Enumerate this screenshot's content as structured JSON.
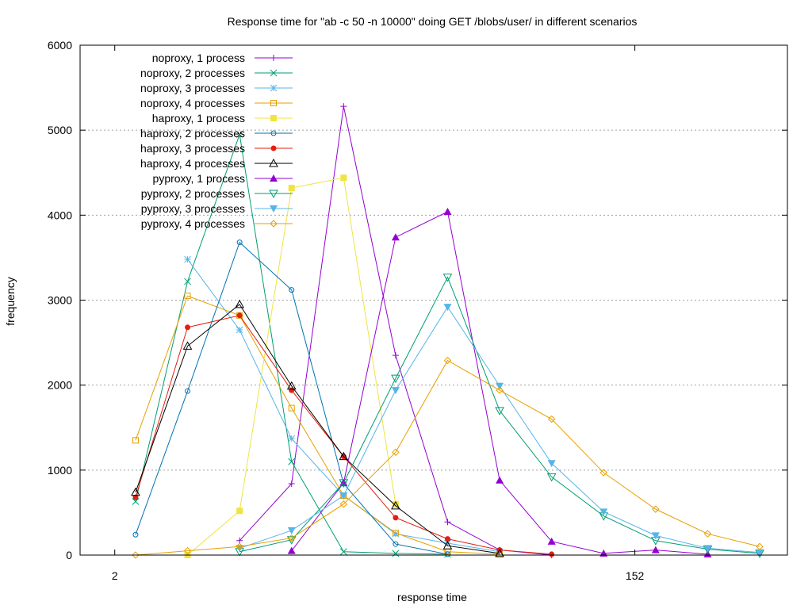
{
  "chart_data": {
    "type": "line",
    "title": "Response time for \"ab -c 50 -n 10000\" doing GET /blobs/user/ in different scenarios",
    "xlabel": "response time",
    "ylabel": "frequency",
    "xlim": [
      -8,
      196
    ],
    "ylim": [
      0,
      6000
    ],
    "x": [
      8,
      23,
      38,
      53,
      68,
      83,
      98,
      113,
      128,
      143,
      158,
      173,
      188
    ],
    "xticks": [
      2,
      152
    ],
    "yticks": [
      0,
      1000,
      2000,
      3000,
      4000,
      5000,
      6000
    ],
    "grid": "horizontal dotted",
    "legend_position": "top-left",
    "series": [
      {
        "name": "noproxy, 1 process",
        "color": "#9400d3",
        "marker": "plus",
        "values": [
          null,
          null,
          170,
          840,
          5280,
          2350,
          390,
          60,
          0,
          null,
          null,
          null,
          null
        ]
      },
      {
        "name": "noproxy, 2 processes",
        "color": "#009e73",
        "marker": "cross",
        "values": [
          630,
          3220,
          4950,
          1100,
          40,
          20,
          10,
          null,
          null,
          null,
          null,
          null,
          null
        ]
      },
      {
        "name": "noproxy, 3 processes",
        "color": "#56b4e9",
        "marker": "star",
        "values": [
          null,
          3480,
          2650,
          1370,
          700,
          250,
          140,
          40,
          null,
          null,
          null,
          null,
          null
        ]
      },
      {
        "name": "noproxy, 4 processes",
        "color": "#e69f00",
        "marker": "square-open",
        "values": [
          1350,
          3050,
          2820,
          1730,
          700,
          260,
          40,
          10,
          null,
          null,
          null,
          null,
          null
        ]
      },
      {
        "name": "haproxy, 1 process",
        "color": "#f0e442",
        "marker": "square-filled",
        "values": [
          null,
          0,
          520,
          4320,
          4440,
          600,
          null,
          null,
          null,
          null,
          null,
          null,
          null
        ]
      },
      {
        "name": "haproxy, 2 processes",
        "color": "#0072b2",
        "marker": "circle-open",
        "values": [
          240,
          1930,
          3680,
          3120,
          840,
          130,
          10,
          null,
          null,
          null,
          null,
          null,
          null
        ]
      },
      {
        "name": "haproxy, 3 processes",
        "color": "#e51e10",
        "marker": "circle-filled",
        "values": [
          680,
          2680,
          2820,
          1940,
          1160,
          440,
          190,
          60,
          10,
          null,
          null,
          null,
          null
        ]
      },
      {
        "name": "haproxy, 4 processes",
        "color": "#000000",
        "marker": "triangle-open",
        "values": [
          740,
          2460,
          2950,
          1990,
          1160,
          580,
          110,
          20,
          null,
          null,
          null,
          null,
          null
        ]
      },
      {
        "name": "pyproxy, 1 process",
        "color": "#9400d3",
        "marker": "triangle-filled",
        "values": [
          null,
          null,
          null,
          50,
          850,
          3740,
          4040,
          880,
          160,
          20,
          60,
          10,
          null
        ]
      },
      {
        "name": "pyproxy, 2 processes",
        "color": "#009e73",
        "marker": "triangle-down-open",
        "values": [
          null,
          null,
          40,
          180,
          850,
          2080,
          3270,
          1700,
          920,
          460,
          170,
          70,
          20
        ]
      },
      {
        "name": "pyproxy, 3 processes",
        "color": "#56b4e9",
        "marker": "triangle-down-filled",
        "values": [
          null,
          null,
          80,
          290,
          700,
          1940,
          2920,
          1990,
          1080,
          510,
          230,
          80,
          30
        ]
      },
      {
        "name": "pyproxy, 4 processes",
        "color": "#e69f00",
        "marker": "diamond-open",
        "values": [
          0,
          50,
          100,
          200,
          600,
          1210,
          2290,
          1940,
          1600,
          970,
          540,
          250,
          100
        ]
      }
    ]
  }
}
